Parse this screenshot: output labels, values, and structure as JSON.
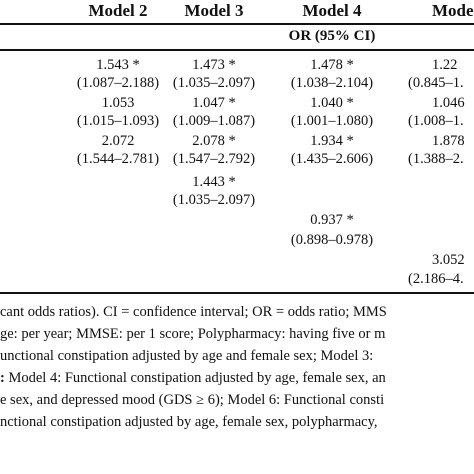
{
  "header": {
    "models": [
      "Model 2",
      "Model 3",
      "Model 4",
      "Mode"
    ],
    "subheader": "OR (95% CI)"
  },
  "rows": [
    {
      "m2": {
        "or": "1.543 *",
        "ci": "(1.087–2.188)"
      },
      "m3": {
        "or": "1.473 *",
        "ci": "(1.035–2.097)"
      },
      "m4": {
        "or": "1.478 *",
        "ci": "(1.038–2.104)"
      },
      "m5": {
        "or": "1.22",
        "ci": "(0.845–1."
      }
    },
    {
      "m2": {
        "or": "1.053",
        "ci": "(1.015–1.093)"
      },
      "m3": {
        "or": "1.047 *",
        "ci": "(1.009–1.087)"
      },
      "m4": {
        "or": "1.040 *",
        "ci": "(1.001–1.080)"
      },
      "m5": {
        "or": "1.046",
        "ci": "(1.008–1."
      }
    },
    {
      "m2": {
        "or": "2.072",
        "ci": "(1.544–2.781)"
      },
      "m3": {
        "or": "2.078 *",
        "ci": "(1.547–2.792)"
      },
      "m4": {
        "or": "1.934 *",
        "ci": "(1.435–2.606)"
      },
      "m5": {
        "or": "1.878",
        "ci": "(1.388–2."
      }
    },
    {
      "m3": {
        "or": "1.443 *",
        "ci": "(1.035–2.097)"
      }
    },
    {
      "m4": {
        "or": "0.937 *",
        "ci": "(0.898–0.978)"
      }
    },
    {
      "m5": {
        "or": "3.052",
        "ci": "(2.186–4."
      }
    }
  ],
  "footnotes": [
    {
      "text": "cant odds ratios). CI = confidence interval; OR = odds ratio; MMS"
    },
    {
      "text": "ge: per year; MMSE: per 1 score; Polypharmacy: having five or m"
    },
    {
      "text": "unctional constipation adjusted by age and female sex; Model 3: "
    },
    {
      "bold": ":",
      "text": " Model 4: Functional constipation adjusted by age, female sex, an"
    },
    {
      "text": "e sex, and depressed mood (GDS ≥ 6); Model 6: Functional consti"
    },
    {
      "text": "nctional constipation adjusted by age, female sex, polypharmacy,"
    }
  ]
}
